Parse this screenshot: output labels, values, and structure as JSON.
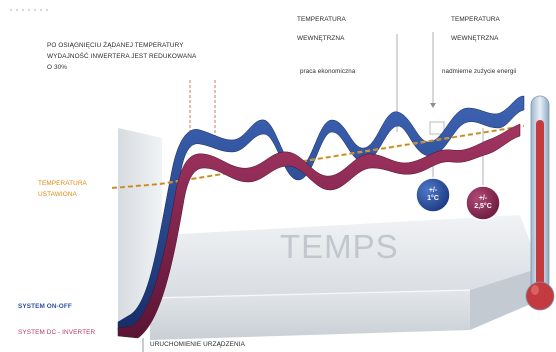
{
  "annotations": {
    "power_reduction_line1": "PO OSIĄGNIĘCIU ŻĄDANEJ TEMPERATURY",
    "power_reduction_line2": "WYDAJNOŚĆ INWERTERA JEST REDUKOWANA",
    "power_reduction_line3": "O 30%",
    "indoor_temp_1_line1": "TEMPERATURA",
    "indoor_temp_1_line2": "WEWNĘTRZNA",
    "indoor_temp_2_line1": "TEMPERATURA",
    "indoor_temp_2_line2": "WEWNĘTRZNA",
    "economic_operation": "praca ekonomiczna",
    "energy_loss": "nadmierne zużycie energii",
    "set_temp_line1": "TEMPERATURA",
    "set_temp_line2": "USTAWIONA",
    "system_on_off": "SYSTEM ON-OFF",
    "system_inverter": "SYSTEM DC - INVERTER",
    "start_of_device": "URUCHOMIENIE URZĄDZENIA",
    "time_axis": "TEMPS"
  },
  "badges": {
    "inverter_tolerance_line1": "+/-",
    "inverter_tolerance_line2": "1°C",
    "onoff_tolerance_line1": "+/-",
    "onoff_tolerance_line2": "2,5°C"
  },
  "colors": {
    "on_off_curve": "#1f3f86",
    "inverter_curve": "#7d1e4a",
    "set_temperature_line": "#e2a23a",
    "platform": "#dfe3e7",
    "thermometer_mercury": "#c43b3f"
  }
}
